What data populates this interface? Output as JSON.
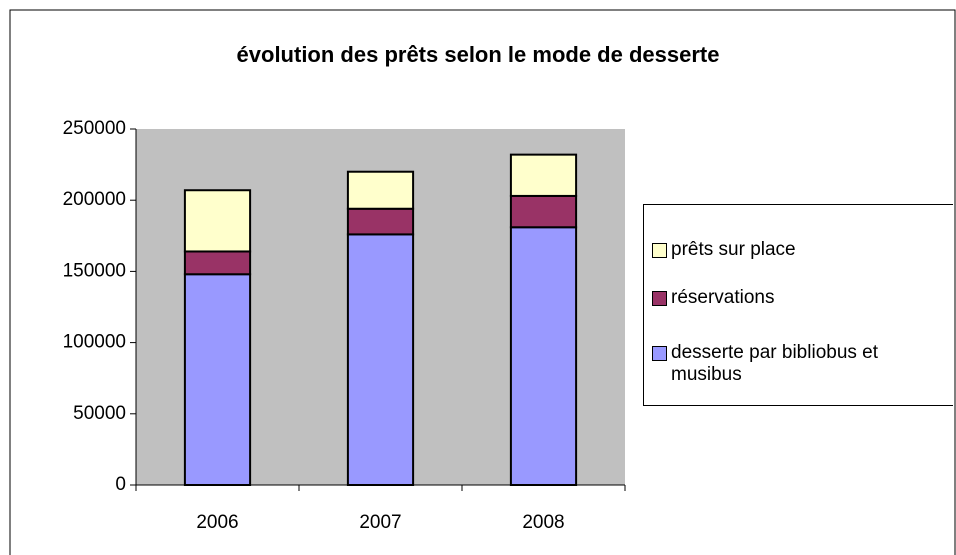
{
  "chart_data": {
    "type": "stacked_bar",
    "title": "évolution des prêts selon le mode de desserte",
    "categories": [
      "2006",
      "2007",
      "2008"
    ],
    "series": [
      {
        "name": "desserte par bibliobus et musibus",
        "color": "#9999ff",
        "values": [
          148000,
          176000,
          181000
        ]
      },
      {
        "name": "réservations",
        "color": "#993366",
        "values": [
          16000,
          18000,
          22000
        ]
      },
      {
        "name": "prêts sur place",
        "color": "#ffffcc",
        "values": [
          43000,
          26000,
          29000
        ]
      }
    ],
    "ylim": [
      0,
      250000
    ],
    "yticks": [
      0,
      50000,
      100000,
      150000,
      200000,
      250000
    ],
    "grid": false,
    "legend": "right"
  }
}
